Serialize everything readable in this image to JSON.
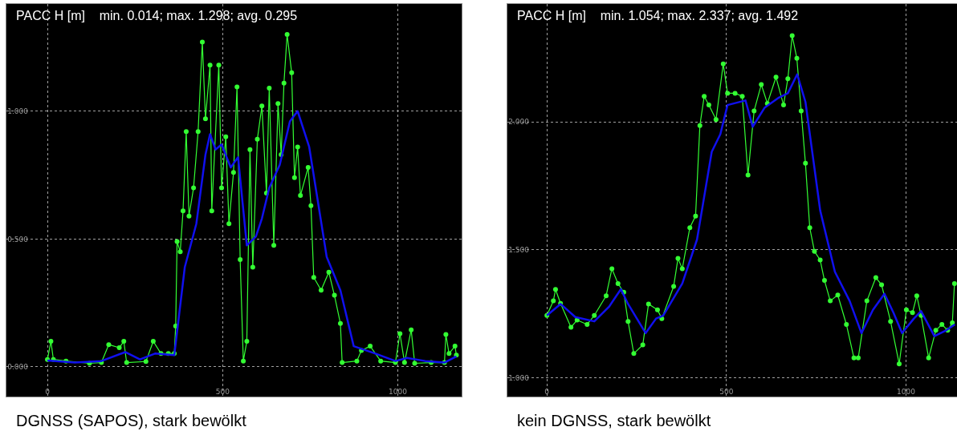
{
  "chart_data": [
    {
      "type": "line",
      "title": "PACC H [m]    min. 0.014; max. 1.298; avg. 0.295",
      "annotations": [
        "DGNSS (SAPOS), stark bewölkt"
      ],
      "xlim": [
        -117,
        1182
      ],
      "ylim": [
        -0.116,
        1.419
      ],
      "xticks": [
        0,
        500,
        1000
      ],
      "yticks": [
        {
          "value": 0,
          "label": "0.000"
        },
        {
          "value": 0.5,
          "label": "0.500"
        },
        {
          "value": 1,
          "label": "1.000"
        }
      ],
      "grid": true,
      "line_style": "solid",
      "series": [
        {
          "color": "#33ff33",
          "marker": "circle",
          "x": [
            0,
            10,
            17,
            53,
            120,
            154,
            175,
            205,
            218,
            226,
            281,
            302,
            324,
            345,
            362,
            366,
            370,
            379,
            387,
            396,
            404,
            417,
            430,
            442,
            451,
            464,
            469,
            489,
            497,
            509,
            518,
            531,
            541,
            550,
            559,
            569,
            578,
            586,
            599,
            612,
            625,
            633,
            646,
            658,
            667,
            675,
            684,
            697,
            705,
            714,
            722,
            744,
            752,
            760,
            781,
            803,
            819,
            836,
            841,
            883,
            896,
            921,
            951,
            993,
            1006,
            1019,
            1038,
            1048,
            1095,
            1133,
            1137,
            1146,
            1163,
            1167
          ],
          "values": [
            0.029,
            0.1,
            0.029,
            0.023,
            0.014,
            0.017,
            0.087,
            0.075,
            0.1,
            0.017,
            0.021,
            0.1,
            0.052,
            0.052,
            0.052,
            0.16,
            0.49,
            0.45,
            0.61,
            0.92,
            0.59,
            0.7,
            0.92,
            1.27,
            0.97,
            1.18,
            0.61,
            1.18,
            0.7,
            0.9,
            0.56,
            0.76,
            1.095,
            0.42,
            0.023,
            0.1,
            0.85,
            0.39,
            0.89,
            1.02,
            0.68,
            1.09,
            0.475,
            1.03,
            0.83,
            1.11,
            1.3,
            1.15,
            0.74,
            0.86,
            0.67,
            0.78,
            0.63,
            0.35,
            0.3,
            0.37,
            0.28,
            0.17,
            0.017,
            0.023,
            0.064,
            0.081,
            0.023,
            0.017,
            0.13,
            0.017,
            0.145,
            0.014,
            0.017,
            0.017,
            0.127,
            0.052,
            0.081,
            0.046
          ]
        },
        {
          "color": "#1010ee",
          "marker": "none",
          "x": [
            0,
            78,
            154,
            222,
            264,
            307,
            362,
            392,
            425,
            451,
            464,
            480,
            497,
            523,
            544,
            569,
            595,
            612,
            633,
            663,
            692,
            714,
            747,
            797,
            836,
            874,
            936,
            993,
            1027,
            1078,
            1133,
            1167
          ],
          "values": [
            0.025,
            0.017,
            0.023,
            0.058,
            0.029,
            0.052,
            0.046,
            0.39,
            0.56,
            0.83,
            0.91,
            0.85,
            0.87,
            0.78,
            0.82,
            0.475,
            0.51,
            0.58,
            0.7,
            0.79,
            0.96,
            1.0,
            0.86,
            0.43,
            0.3,
            0.081,
            0.052,
            0.023,
            0.035,
            0.023,
            0.017,
            0.041
          ]
        }
      ]
    },
    {
      "type": "line",
      "title": "PACC H [m]    min. 1.054; max. 2.337; avg. 1.492",
      "annotations": [
        "kein DGNSS, stark bewölkt"
      ],
      "xlim": [
        -110,
        1142
      ],
      "ylim": [
        0.926,
        2.461
      ],
      "xticks": [
        0,
        500,
        1000
      ],
      "yticks": [
        {
          "value": 1,
          "label": "1.000"
        },
        {
          "value": 1.5,
          "label": "1.500"
        },
        {
          "value": 2,
          "label": "2.000"
        }
      ],
      "grid": true,
      "line_style": "solid",
      "series": [
        {
          "color": "#33ff33",
          "marker": "circle",
          "x": [
            0,
            18,
            24,
            38,
            67,
            84,
            112,
            132,
            165,
            181,
            198,
            214,
            226,
            242,
            267,
            283,
            308,
            320,
            353,
            365,
            377,
            398,
            414,
            426,
            438,
            451,
            471,
            491,
            503,
            524,
            544,
            560,
            577,
            597,
            614,
            638,
            659,
            671,
            683,
            696,
            708,
            720,
            732,
            745,
            761,
            773,
            789,
            810,
            834,
            855,
            867,
            891,
            916,
            932,
            957,
            981,
            1001,
            1018,
            1030,
            1042,
            1063,
            1083,
            1100,
            1116,
            1129,
            1135
          ],
          "values": [
            1.243,
            1.3,
            1.345,
            1.29,
            1.197,
            1.225,
            1.208,
            1.243,
            1.32,
            1.426,
            1.368,
            1.334,
            1.22,
            1.094,
            1.128,
            1.288,
            1.265,
            1.231,
            1.357,
            1.466,
            1.426,
            1.586,
            1.632,
            1.986,
            2.1,
            2.066,
            2.009,
            2.227,
            2.112,
            2.112,
            2.1,
            1.792,
            2.043,
            2.146,
            2.072,
            2.175,
            2.066,
            2.169,
            2.337,
            2.249,
            2.043,
            1.838,
            1.586,
            1.494,
            1.46,
            1.38,
            1.3,
            1.323,
            1.208,
            1.077,
            1.077,
            1.3,
            1.391,
            1.363,
            1.22,
            1.054,
            1.265,
            1.254,
            1.32,
            1.243,
            1.077,
            1.185,
            1.208,
            1.185,
            1.214,
            1.368
          ]
        },
        {
          "color": "#1010ee",
          "marker": "none",
          "x": [
            0,
            38,
            79,
            132,
            173,
            206,
            226,
            275,
            304,
            324,
            377,
            418,
            459,
            483,
            503,
            553,
            573,
            606,
            646,
            671,
            697,
            720,
            761,
            802,
            843,
            876,
            908,
            940,
            965,
            989,
            1022,
            1042,
            1079,
            1112,
            1136
          ],
          "values": [
            1.243,
            1.288,
            1.237,
            1.22,
            1.277,
            1.346,
            1.288,
            1.174,
            1.231,
            1.243,
            1.368,
            1.54,
            1.883,
            1.952,
            2.066,
            2.084,
            1.981,
            2.055,
            2.095,
            2.112,
            2.186,
            2.078,
            1.654,
            1.414,
            1.3,
            1.174,
            1.265,
            1.328,
            1.254,
            1.174,
            1.231,
            1.26,
            1.162,
            1.185,
            1.208
          ]
        }
      ]
    }
  ]
}
